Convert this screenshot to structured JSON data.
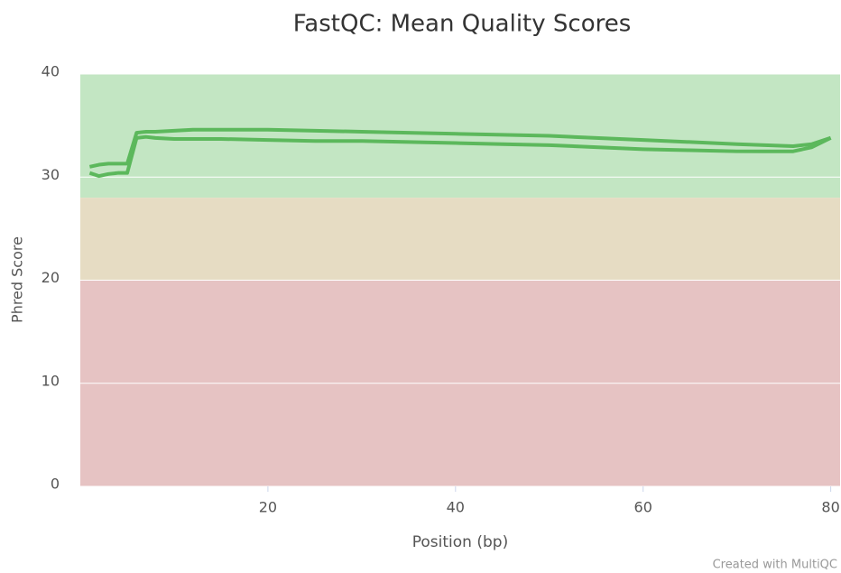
{
  "chart_data": {
    "type": "line",
    "title": "FastQC: Mean Quality Scores",
    "x_label": "Position (bp)",
    "y_label": "Phred Score",
    "credit": "Created with MultiQC",
    "x": [
      1,
      2,
      3,
      4,
      5,
      6,
      7,
      8,
      10,
      12,
      15,
      20,
      25,
      30,
      35,
      40,
      45,
      50,
      55,
      60,
      65,
      70,
      73,
      76,
      78,
      80
    ],
    "series": [
      {
        "color": "#5cb85c",
        "values": [
          31.0,
          31.2,
          31.3,
          31.3,
          31.3,
          34.3,
          34.4,
          34.4,
          34.5,
          34.6,
          34.6,
          34.6,
          34.5,
          34.4,
          34.3,
          34.2,
          34.1,
          34.0,
          33.8,
          33.6,
          33.4,
          33.2,
          33.1,
          33.0,
          33.2,
          33.8
        ]
      },
      {
        "color": "#5cb85c",
        "values": [
          30.4,
          30.1,
          30.3,
          30.4,
          30.4,
          33.8,
          33.9,
          33.8,
          33.7,
          33.7,
          33.7,
          33.6,
          33.5,
          33.5,
          33.4,
          33.3,
          33.2,
          33.1,
          32.9,
          32.7,
          32.6,
          32.5,
          32.5,
          32.5,
          32.9,
          33.8
        ]
      }
    ],
    "plot_bands": [
      {
        "from": 28,
        "to": 40,
        "color": "#c3e6c3"
      },
      {
        "from": 20,
        "to": 28,
        "color": "#e6dcc3"
      },
      {
        "from": 0,
        "to": 20,
        "color": "#e6c3c3"
      }
    ],
    "xlim": [
      0,
      81
    ],
    "ylim": [
      0,
      40
    ],
    "xticks": [
      20,
      40,
      60,
      80
    ],
    "yticks": [
      0,
      10,
      20,
      30,
      40
    ],
    "grid": true
  }
}
